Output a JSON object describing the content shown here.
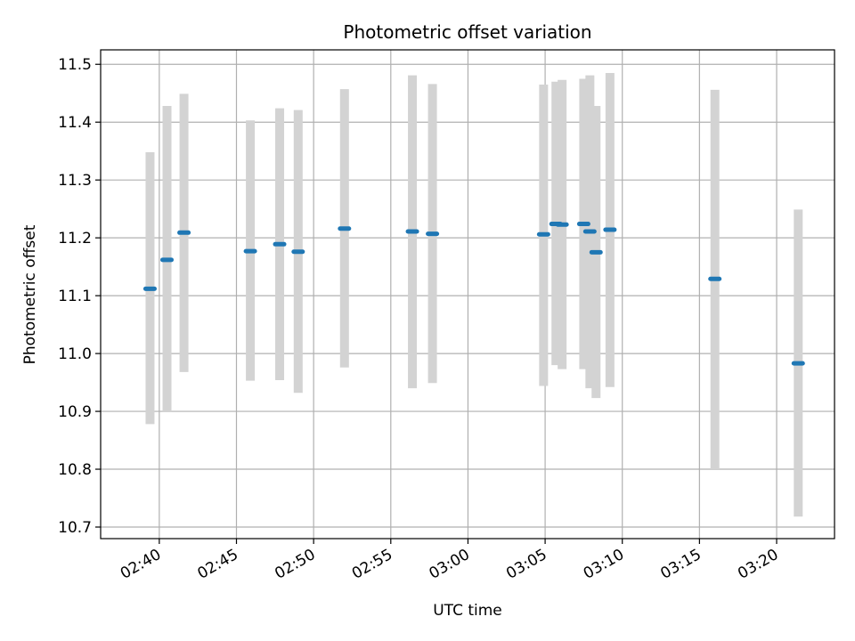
{
  "chart_data": {
    "type": "scatter",
    "title": "Photometric offset variation",
    "xlabel": "UTC time",
    "ylabel": "Photometric offset",
    "xlim": [
      "02:36:12",
      "03:23:45"
    ],
    "ylim": [
      10.68,
      11.525
    ],
    "grid": true,
    "x_ticks": [
      "02:40",
      "02:45",
      "02:50",
      "02:55",
      "03:00",
      "03:05",
      "03:10",
      "03:15",
      "03:20"
    ],
    "y_ticks": [
      "10.7",
      "10.8",
      "10.9",
      "11.0",
      "11.1",
      "11.2",
      "11.3",
      "11.4",
      "11.5"
    ],
    "colors": {
      "point": "#1f77b4",
      "errorbar": "#d3d3d3",
      "grid": "#b0b0b0"
    },
    "points": [
      {
        "x": "02:39:24",
        "y": 11.112,
        "low": 10.878,
        "high": 11.348
      },
      {
        "x": "02:40:30",
        "y": 11.162,
        "low": 10.9,
        "high": 11.428
      },
      {
        "x": "02:41:36",
        "y": 11.209,
        "low": 10.968,
        "high": 11.449
      },
      {
        "x": "02:45:54",
        "y": 11.177,
        "low": 10.953,
        "high": 11.403
      },
      {
        "x": "02:47:48",
        "y": 11.189,
        "low": 10.954,
        "high": 11.424
      },
      {
        "x": "02:49:00",
        "y": 11.176,
        "low": 10.932,
        "high": 11.421
      },
      {
        "x": "02:52:00",
        "y": 11.216,
        "low": 10.976,
        "high": 11.457
      },
      {
        "x": "02:56:24",
        "y": 11.211,
        "low": 10.94,
        "high": 11.481
      },
      {
        "x": "02:57:42",
        "y": 11.207,
        "low": 10.949,
        "high": 11.466
      },
      {
        "x": "03:04:54",
        "y": 11.206,
        "low": 10.944,
        "high": 11.465
      },
      {
        "x": "03:05:42",
        "y": 11.224,
        "low": 10.98,
        "high": 11.47
      },
      {
        "x": "03:06:06",
        "y": 11.223,
        "low": 10.973,
        "high": 11.473
      },
      {
        "x": "03:07:30",
        "y": 11.224,
        "low": 10.973,
        "high": 11.475
      },
      {
        "x": "03:07:54",
        "y": 11.211,
        "low": 10.94,
        "high": 11.481
      },
      {
        "x": "03:08:18",
        "y": 11.175,
        "low": 10.923,
        "high": 11.428
      },
      {
        "x": "03:09:12",
        "y": 11.214,
        "low": 10.942,
        "high": 11.485
      },
      {
        "x": "03:16:00",
        "y": 11.129,
        "low": 10.8,
        "high": 11.456
      },
      {
        "x": "03:21:24",
        "y": 10.983,
        "low": 10.718,
        "high": 11.249
      }
    ]
  }
}
